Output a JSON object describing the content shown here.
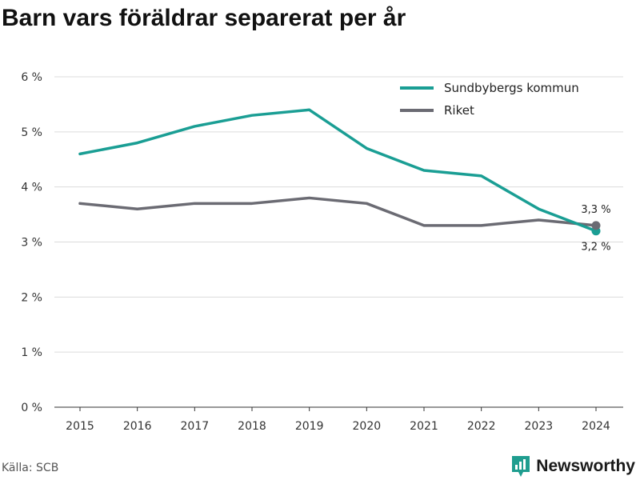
{
  "title": "Barn vars föräldrar separerat per år",
  "source": "Källa: SCB",
  "brand": {
    "name": "Newsworthy",
    "icon": "newsworthy-logo-icon",
    "color": "#1f9d8f"
  },
  "chart_data": {
    "type": "line",
    "title": "Barn vars föräldrar separerat per år",
    "xlabel": "",
    "ylabel": "",
    "x": [
      "2015",
      "2016",
      "2017",
      "2018",
      "2019",
      "2020",
      "2021",
      "2022",
      "2023",
      "2024"
    ],
    "ylim": [
      0,
      6
    ],
    "y_unit": "%",
    "y_ticks": [
      "0 %",
      "1 %",
      "2 %",
      "3 %",
      "4 %",
      "5 %",
      "6 %"
    ],
    "grid": true,
    "legend_position": "top-right",
    "series": [
      {
        "name": "Sundbybergs kommun",
        "color": "#1a9e94",
        "values": [
          4.6,
          4.8,
          5.1,
          5.3,
          5.4,
          4.7,
          4.3,
          4.2,
          3.6,
          3.2
        ],
        "end_label": "3,2 %"
      },
      {
        "name": "Riket",
        "color": "#6b6b73",
        "values": [
          3.7,
          3.6,
          3.7,
          3.7,
          3.8,
          3.7,
          3.3,
          3.3,
          3.4,
          3.3
        ],
        "end_label": "3,3 %"
      }
    ]
  }
}
